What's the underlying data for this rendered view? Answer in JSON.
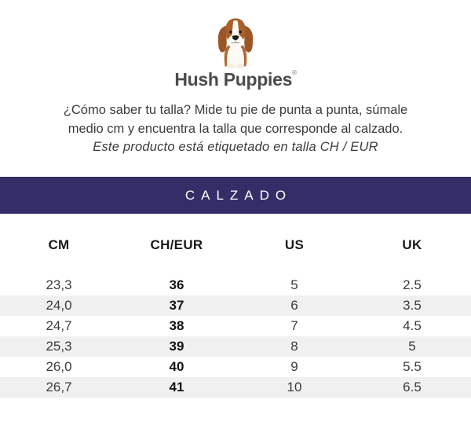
{
  "brand": {
    "name": "Hush Puppies",
    "trademark": "®"
  },
  "icons": {
    "logo": "basset-hound-icon"
  },
  "intro": {
    "line1": "¿Cómo saber tu talla? Mide tu pie de punta a punta, súmale",
    "line2": "medio cm y encuentra la talla que corresponde al calzado.",
    "line3": "Este producto está etiquetado en talla CH / EUR"
  },
  "banner": {
    "title": "CALZADO"
  },
  "size_table": {
    "headers": [
      "CM",
      "CH/EUR",
      "US",
      "UK"
    ],
    "bold_column_index": 1,
    "rows": [
      [
        "23,3",
        "36",
        "5",
        "2.5"
      ],
      [
        "24,0",
        "37",
        "6",
        "3.5"
      ],
      [
        "24,7",
        "38",
        "7",
        "4.5"
      ],
      [
        "25,3",
        "39",
        "8",
        "5"
      ],
      [
        "26,0",
        "40",
        "9",
        "5.5"
      ],
      [
        "26,7",
        "41",
        "10",
        "6.5"
      ]
    ]
  },
  "colors": {
    "banner_background": "#342e68",
    "banner_text": "#ffffff",
    "row_stripe": "#f0f0f0",
    "body_text": "#3c3c3e",
    "bold_text": "#141416",
    "dog_ear_brown": "#a0592a",
    "dog_body_white": "#fdfaf5"
  }
}
